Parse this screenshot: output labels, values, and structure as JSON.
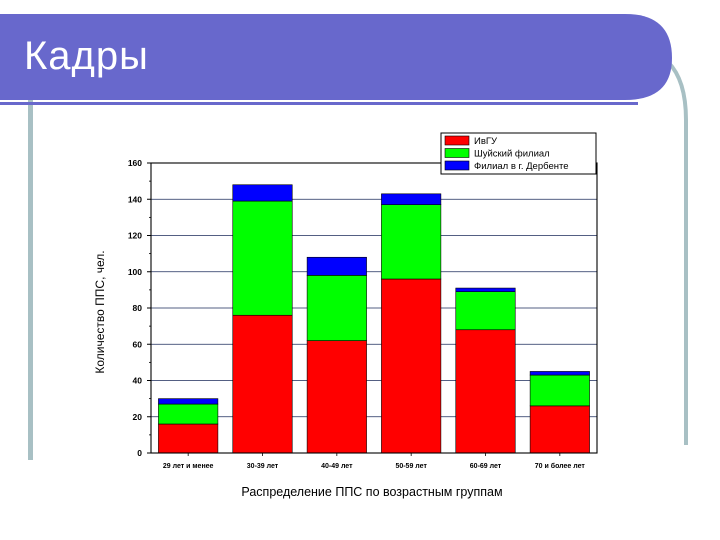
{
  "slide": {
    "title": "Кадры",
    "colors": {
      "header": "#6868cc",
      "frame": "#a8c0c4",
      "background": "#ffffff"
    }
  },
  "chart_data": {
    "type": "bar",
    "stacked": true,
    "title": "",
    "xlabel": "Распределение ППС по возрастным группам",
    "ylabel": "Количество ППС, чел.",
    "ylim": [
      0,
      160
    ],
    "yticks": [
      0,
      20,
      40,
      60,
      80,
      100,
      120,
      140,
      160
    ],
    "grid": true,
    "legend_position": "top-right",
    "categories": [
      "29 лет и менее",
      "30-39 лет",
      "40-49 лет",
      "50-59 лет",
      "60-69 лет",
      "70 и более лет"
    ],
    "series": [
      {
        "name": "ИвГУ",
        "color": "#ff0000",
        "values": [
          16,
          76,
          62,
          96,
          68,
          26
        ]
      },
      {
        "name": "Шуйский филиал",
        "color": "#00ff00",
        "values": [
          11,
          63,
          36,
          41,
          21,
          17
        ]
      },
      {
        "name": "Филиал в г. Дербенте",
        "color": "#0000ff",
        "values": [
          3,
          9,
          10,
          6,
          2,
          2
        ]
      }
    ]
  }
}
